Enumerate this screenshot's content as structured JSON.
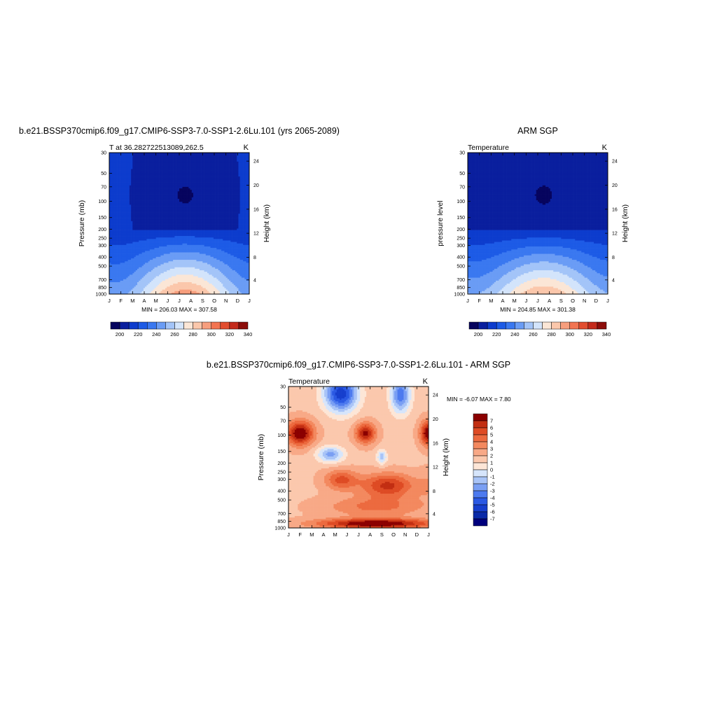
{
  "colormaps": {
    "absolute": [
      "#06045e",
      "#0a1f9e",
      "#0d3ccd",
      "#1d5be6",
      "#3a78f0",
      "#6a9cf5",
      "#a3c4f8",
      "#d3e4fb",
      "#fbe6d6",
      "#fbc7ab",
      "#f79e7d",
      "#f27451",
      "#e24d2f",
      "#c42a1b",
      "#8c0d0a"
    ],
    "diff": [
      "#00007d",
      "#0a2aa8",
      "#173fcd",
      "#2b59e3",
      "#4d7aef",
      "#7a9ff3",
      "#a9c4f7",
      "#d6e5fb",
      "#fde6d7",
      "#fbc8ad",
      "#f8a987",
      "#f3895f",
      "#ec6a3f",
      "#de4b24",
      "#c22e12",
      "#8b0000"
    ]
  },
  "top_titles": {
    "left": "b.e21.BSSP370cmip6.f09_g17.CMIP6-SSP3-7.0-SSP1-2.6Lu.101 (yrs 2065-2089)",
    "right": "ARM SGP"
  },
  "diff_title": "b.e21.BSSP370cmip6.f09_g17.CMIP6-SSP3-7.0-SSP1-2.6Lu.101 - ARM SGP",
  "common": {
    "months": [
      "J",
      "F",
      "M",
      "A",
      "M",
      "J",
      "J",
      "A",
      "S",
      "O",
      "N",
      "D",
      "J"
    ],
    "pressure_ticks": [
      "30",
      "50",
      "70",
      "100",
      "150",
      "200",
      "250",
      "300",
      "400",
      "500",
      "700",
      "850",
      "1000"
    ],
    "height_ticks": [
      "24",
      "20",
      "16",
      "12",
      "8",
      "4"
    ],
    "height_label": "Height (km)",
    "units": "K"
  },
  "charts": [
    {
      "id": "model",
      "left_label": "T at 36.282722513089,262.5",
      "ylabel": "Pressure (mb)",
      "minmax": "MIN = 206.03 MAX = 307.58",
      "colorbar_ticks": [
        "200",
        "220",
        "240",
        "260",
        "280",
        "300",
        "320",
        "340"
      ]
    },
    {
      "id": "obs",
      "left_label": "Temperature",
      "ylabel": "pressure level",
      "minmax": "MIN = 204.85 MAX = 301.38",
      "colorbar_ticks": [
        "200",
        "220",
        "240",
        "260",
        "280",
        "300",
        "320",
        "340"
      ]
    },
    {
      "id": "diff",
      "left_label": "Temperature",
      "ylabel": "Pressure (mb)",
      "minmax": "MIN =  -6.07 MAX =   7.80",
      "colorbar_ticks": [
        "7",
        "6",
        "5",
        "4",
        "3",
        "2",
        "1",
        "0",
        "-1",
        "-2",
        "-3",
        "-4",
        "-5",
        "-6",
        "-7"
      ]
    }
  ],
  "chart_data": [
    {
      "type": "heatmap",
      "title": "b.e21.BSSP370cmip6.f09_g17.CMIP6-SSP3-7.0-SSP1-2.6Lu.101 (yrs 2065-2089)",
      "variable": "T at 36.282722513089,262.5",
      "units": "K",
      "ylabel": "Pressure (mb)",
      "y2label": "Height (km)",
      "x": [
        "J",
        "F",
        "M",
        "A",
        "M",
        "J",
        "J",
        "A",
        "S",
        "O",
        "N",
        "D",
        "J"
      ],
      "y": [
        30,
        50,
        70,
        100,
        150,
        200,
        250,
        300,
        400,
        500,
        700,
        850,
        1000
      ],
      "min": 206.03,
      "max": 307.58,
      "levels": [
        195,
        200,
        205,
        210,
        215,
        220,
        225,
        230,
        235,
        240,
        245,
        250,
        255,
        260,
        265,
        270,
        275,
        280,
        285,
        290,
        295,
        300,
        305,
        310,
        315,
        320,
        325,
        330,
        335,
        340,
        345
      ]
    },
    {
      "type": "heatmap",
      "title": "ARM SGP",
      "variable": "Temperature",
      "units": "K",
      "ylabel": "pressure level",
      "y2label": "Height (km)",
      "x": [
        "J",
        "F",
        "M",
        "A",
        "M",
        "J",
        "J",
        "A",
        "S",
        "O",
        "N",
        "D",
        "J"
      ],
      "y": [
        30,
        50,
        70,
        100,
        150,
        200,
        250,
        300,
        400,
        500,
        700,
        850,
        1000
      ],
      "min": 204.85,
      "max": 301.38
    },
    {
      "type": "heatmap",
      "title": "b.e21.BSSP370cmip6.f09_g17.CMIP6-SSP3-7.0-SSP1-2.6Lu.101 - ARM SGP",
      "variable": "Temperature",
      "units": "K",
      "ylabel": "Pressure (mb)",
      "y2label": "Height (km)",
      "x": [
        "J",
        "F",
        "M",
        "A",
        "M",
        "J",
        "J",
        "A",
        "S",
        "O",
        "N",
        "D",
        "J"
      ],
      "y": [
        30,
        50,
        70,
        100,
        150,
        200,
        250,
        300,
        400,
        500,
        700,
        850,
        1000
      ],
      "min": -6.07,
      "max": 7.8,
      "levels": [
        -7,
        -6,
        -5,
        -4,
        -3,
        -2,
        -1,
        0,
        1,
        2,
        3,
        4,
        5,
        6,
        7
      ]
    }
  ]
}
